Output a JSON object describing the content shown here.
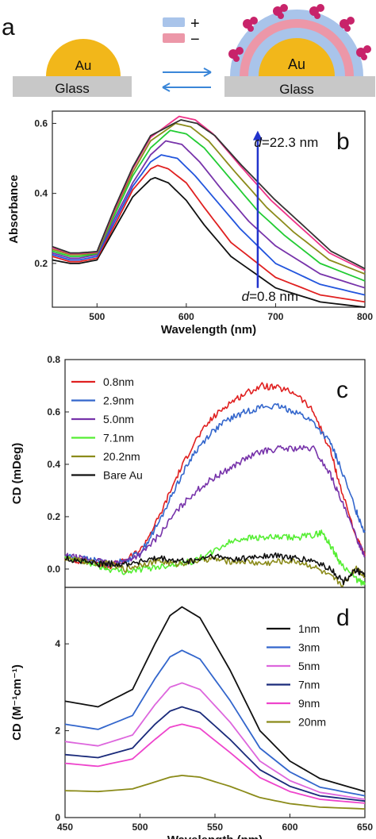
{
  "schematic": {
    "panel_label": "a",
    "left_au": "Au",
    "left_glass": "Glass",
    "right_au": "Au",
    "right_glass": "Glass",
    "plus": "+",
    "minus": "−",
    "colors": {
      "gold": "#f2b71a",
      "glass": "#c8c8c8",
      "pos_layer": "#a9c4ea",
      "neg_layer": "#ec97a8",
      "particle": "#c8236a",
      "arrow": "#3a86d8"
    }
  },
  "chart_data": [
    {
      "id": "b",
      "type": "line",
      "panel_label": "b",
      "xlabel": "Wavelength (nm)",
      "ylabel": "Absorbance",
      "xlim": [
        450,
        800
      ],
      "ylim": [
        0.075,
        0.635
      ],
      "xticks": [
        500,
        600,
        700,
        800
      ],
      "yticks": [
        0.2,
        0.4,
        0.6
      ],
      "annotation_top": {
        "italic": "d",
        "rest": "=22.3 nm"
      },
      "annotation_bottom": {
        "italic": "d",
        "rest": "=0.8 nm"
      },
      "arrow_color": "#2233cc",
      "arrow_x": 680,
      "arrow_y_from": 0.13,
      "arrow_y_to": 0.57,
      "series": [
        {
          "color": "#111111",
          "x": [
            450,
            470,
            480,
            500,
            520,
            540,
            560,
            565,
            580,
            600,
            620,
            650,
            700,
            750,
            800
          ],
          "y": [
            0.21,
            0.2,
            0.2,
            0.21,
            0.3,
            0.39,
            0.44,
            0.445,
            0.43,
            0.38,
            0.31,
            0.22,
            0.13,
            0.09,
            0.075
          ]
        },
        {
          "color": "#e02020",
          "x": [
            450,
            470,
            480,
            500,
            520,
            540,
            560,
            568,
            580,
            600,
            620,
            650,
            700,
            750,
            800
          ],
          "y": [
            0.22,
            0.205,
            0.205,
            0.215,
            0.31,
            0.41,
            0.47,
            0.48,
            0.47,
            0.43,
            0.36,
            0.26,
            0.16,
            0.11,
            0.09
          ]
        },
        {
          "color": "#2255dd",
          "x": [
            450,
            470,
            480,
            500,
            520,
            540,
            560,
            572,
            590,
            610,
            630,
            660,
            700,
            750,
            800
          ],
          "y": [
            0.225,
            0.21,
            0.21,
            0.22,
            0.32,
            0.42,
            0.49,
            0.51,
            0.5,
            0.45,
            0.39,
            0.3,
            0.2,
            0.14,
            0.11
          ]
        },
        {
          "color": "#7733aa",
          "x": [
            450,
            470,
            480,
            500,
            520,
            540,
            560,
            577,
            595,
            615,
            640,
            670,
            700,
            750,
            800
          ],
          "y": [
            0.23,
            0.215,
            0.215,
            0.225,
            0.33,
            0.43,
            0.51,
            0.55,
            0.54,
            0.49,
            0.41,
            0.32,
            0.25,
            0.17,
            0.13
          ]
        },
        {
          "color": "#22cc33",
          "x": [
            450,
            470,
            480,
            500,
            520,
            540,
            560,
            582,
            600,
            620,
            650,
            680,
            710,
            750,
            800
          ],
          "y": [
            0.235,
            0.22,
            0.22,
            0.228,
            0.34,
            0.45,
            0.53,
            0.58,
            0.57,
            0.53,
            0.44,
            0.35,
            0.28,
            0.2,
            0.15
          ]
        },
        {
          "color": "#8b8b1a",
          "x": [
            450,
            470,
            480,
            500,
            520,
            540,
            560,
            588,
            605,
            625,
            655,
            690,
            720,
            760,
            800
          ],
          "y": [
            0.24,
            0.225,
            0.225,
            0.23,
            0.35,
            0.46,
            0.55,
            0.6,
            0.59,
            0.55,
            0.46,
            0.36,
            0.29,
            0.21,
            0.17
          ]
        },
        {
          "color": "#ee3388",
          "x": [
            450,
            470,
            480,
            500,
            520,
            540,
            560,
            592,
            610,
            630,
            660,
            695,
            725,
            760,
            800
          ],
          "y": [
            0.245,
            0.228,
            0.228,
            0.232,
            0.355,
            0.47,
            0.56,
            0.62,
            0.61,
            0.57,
            0.48,
            0.38,
            0.31,
            0.23,
            0.18
          ]
        },
        {
          "color": "#333333",
          "x": [
            450,
            470,
            480,
            500,
            520,
            540,
            560,
            594,
            612,
            632,
            662,
            698,
            728,
            762,
            800
          ],
          "y": [
            0.248,
            0.23,
            0.23,
            0.234,
            0.36,
            0.475,
            0.565,
            0.61,
            0.6,
            0.565,
            0.48,
            0.385,
            0.315,
            0.235,
            0.185
          ]
        }
      ]
    },
    {
      "id": "c",
      "type": "line",
      "panel_label": "c",
      "xlabel": "",
      "ylabel": "CD (mDeg)",
      "xlim": [
        450,
        800
      ],
      "ylim": [
        -0.07,
        0.8
      ],
      "yticks": [
        0.0,
        0.2,
        0.4,
        0.6,
        0.8
      ],
      "legend": {
        "placement": "top-left"
      },
      "series": [
        {
          "name": "0.8nm",
          "color": "#e02020",
          "x": [
            450,
            470,
            490,
            500,
            520,
            540,
            560,
            580,
            600,
            620,
            640,
            660,
            680,
            700,
            720,
            740,
            760,
            770,
            790,
            800
          ],
          "y": [
            0.04,
            0.03,
            0.02,
            0.01,
            0.03,
            0.08,
            0.2,
            0.35,
            0.48,
            0.57,
            0.63,
            0.67,
            0.7,
            0.69,
            0.67,
            0.6,
            0.45,
            0.33,
            0.12,
            0.05
          ]
        },
        {
          "name": "2.9nm",
          "color": "#3366cc",
          "x": [
            450,
            470,
            490,
            500,
            520,
            540,
            560,
            580,
            600,
            620,
            640,
            660,
            680,
            700,
            720,
            740,
            760,
            770,
            790,
            800
          ],
          "y": [
            0.05,
            0.04,
            0.03,
            0.02,
            0.03,
            0.07,
            0.18,
            0.32,
            0.44,
            0.52,
            0.57,
            0.6,
            0.62,
            0.62,
            0.6,
            0.56,
            0.48,
            0.4,
            0.22,
            0.14
          ]
        },
        {
          "name": "5.0nm",
          "color": "#7733aa",
          "x": [
            450,
            470,
            490,
            500,
            520,
            540,
            560,
            580,
            600,
            620,
            640,
            660,
            680,
            700,
            720,
            740,
            760,
            770,
            790,
            800
          ],
          "y": [
            0.05,
            0.04,
            0.03,
            0.02,
            0.03,
            0.06,
            0.13,
            0.22,
            0.29,
            0.34,
            0.38,
            0.42,
            0.45,
            0.46,
            0.46,
            0.46,
            0.36,
            0.28,
            0.12,
            0.05
          ]
        },
        {
          "name": "7.1nm",
          "color": "#55ee33",
          "x": [
            450,
            470,
            490,
            500,
            520,
            540,
            560,
            580,
            600,
            620,
            640,
            660,
            680,
            700,
            720,
            740,
            750,
            760,
            770,
            790,
            800
          ],
          "y": [
            0.04,
            0.03,
            0.01,
            0.0,
            -0.01,
            0.0,
            0.01,
            0.02,
            0.03,
            0.06,
            0.1,
            0.12,
            0.12,
            0.12,
            0.12,
            0.13,
            0.14,
            0.09,
            0.03,
            -0.04,
            -0.06
          ]
        },
        {
          "name": "20.2nm",
          "color": "#8b8b1a",
          "x": [
            450,
            470,
            490,
            500,
            520,
            540,
            560,
            580,
            600,
            620,
            640,
            660,
            680,
            700,
            720,
            740,
            760,
            775,
            790,
            800
          ],
          "y": [
            0.04,
            0.03,
            0.02,
            0.02,
            0.0,
            0.02,
            0.03,
            0.02,
            0.03,
            0.04,
            0.03,
            0.03,
            0.02,
            0.03,
            0.03,
            0.01,
            -0.03,
            -0.06,
            0.01,
            -0.03
          ]
        },
        {
          "name": "Bare Au",
          "color": "#111111",
          "x": [
            450,
            470,
            490,
            500,
            520,
            540,
            560,
            580,
            600,
            620,
            640,
            660,
            680,
            700,
            720,
            740,
            760,
            775,
            790,
            800
          ],
          "y": [
            0.04,
            0.03,
            0.02,
            0.02,
            0.02,
            0.03,
            0.04,
            0.03,
            0.03,
            0.05,
            0.04,
            0.04,
            0.05,
            0.05,
            0.04,
            0.03,
            0.0,
            -0.05,
            0.0,
            -0.03
          ]
        }
      ]
    },
    {
      "id": "d",
      "type": "line",
      "panel_label": "d",
      "xlabel": "Wavelength (nm)",
      "ylabel": "CD (M⁻¹cm⁻¹)",
      "xlim": [
        450,
        650
      ],
      "ylim": [
        0,
        5.3
      ],
      "xticks": [
        450,
        500,
        550,
        600,
        650
      ],
      "yticks": [
        0,
        2,
        4
      ],
      "legend": {
        "placement": "top-right"
      },
      "series": [
        {
          "name": "1nm",
          "color": "#111111",
          "x": [
            450,
            472,
            495,
            510,
            520,
            528,
            540,
            560,
            580,
            600,
            620,
            650
          ],
          "y": [
            2.68,
            2.55,
            2.95,
            4.0,
            4.65,
            4.85,
            4.6,
            3.4,
            2.0,
            1.3,
            0.9,
            0.6
          ]
        },
        {
          "name": "3nm",
          "color": "#3366cc",
          "x": [
            450,
            472,
            495,
            510,
            520,
            528,
            540,
            560,
            580,
            600,
            620,
            650
          ],
          "y": [
            2.15,
            2.03,
            2.35,
            3.2,
            3.7,
            3.85,
            3.65,
            2.7,
            1.6,
            1.05,
            0.7,
            0.5
          ]
        },
        {
          "name": "5nm",
          "color": "#dd66dd",
          "x": [
            450,
            472,
            495,
            510,
            520,
            528,
            540,
            560,
            580,
            600,
            620,
            650
          ],
          "y": [
            1.75,
            1.65,
            1.9,
            2.6,
            3.0,
            3.1,
            2.95,
            2.2,
            1.3,
            0.85,
            0.58,
            0.42
          ]
        },
        {
          "name": "7nm",
          "color": "#1a2a7a",
          "x": [
            450,
            472,
            495,
            510,
            520,
            528,
            540,
            560,
            580,
            600,
            620,
            650
          ],
          "y": [
            1.45,
            1.38,
            1.6,
            2.15,
            2.45,
            2.55,
            2.42,
            1.8,
            1.1,
            0.72,
            0.5,
            0.38
          ]
        },
        {
          "name": "9nm",
          "color": "#ee44cc",
          "x": [
            450,
            472,
            495,
            510,
            520,
            528,
            540,
            560,
            580,
            600,
            620,
            650
          ],
          "y": [
            1.25,
            1.18,
            1.35,
            1.8,
            2.08,
            2.15,
            2.05,
            1.5,
            0.92,
            0.6,
            0.42,
            0.33
          ]
        },
        {
          "name": "20nm",
          "color": "#8b8b1a",
          "x": [
            450,
            472,
            495,
            510,
            520,
            528,
            540,
            560,
            580,
            600,
            620,
            650
          ],
          "y": [
            0.62,
            0.6,
            0.66,
            0.82,
            0.93,
            0.97,
            0.93,
            0.72,
            0.46,
            0.32,
            0.24,
            0.2
          ]
        }
      ]
    }
  ]
}
